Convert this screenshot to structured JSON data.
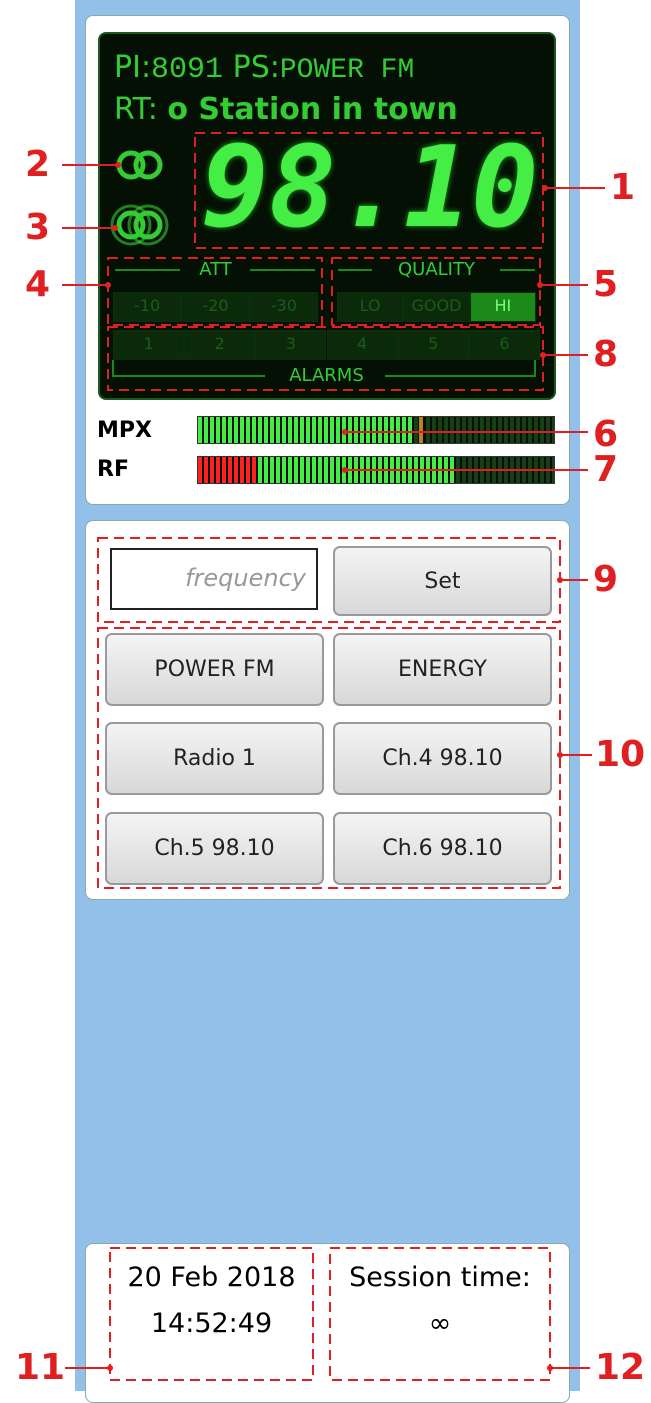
{
  "display": {
    "pi_label": "PI:",
    "pi": "8091",
    "ps_label": "PS:",
    "ps": "POWER FM",
    "rt_label": "RT:",
    "rt": "o Station in town",
    "frequency": "98.10",
    "att": {
      "title": "ATT",
      "cells": [
        "-10",
        "-20",
        "-30"
      ]
    },
    "quality": {
      "title": "QUALITY",
      "cells": [
        "LO",
        "GOOD",
        "HI"
      ],
      "active": 2
    },
    "alarms": {
      "title": "ALARMS",
      "cells": [
        "1",
        "2",
        "3",
        "4",
        "5",
        "6"
      ]
    }
  },
  "meters": [
    {
      "name": "MPX",
      "segments": 60,
      "level": 36,
      "peak": 38,
      "red": 0
    },
    {
      "name": "RF",
      "segments": 60,
      "level": 43,
      "red": 10
    }
  ],
  "controls": {
    "placeholder": "frequency",
    "set": "Set",
    "presets": [
      "POWER FM",
      "ENERGY",
      "Radio 1",
      "Ch.4 98.10",
      "Ch.5 98.10",
      "Ch.6 98.10"
    ]
  },
  "footer": {
    "date": "20 Feb 2018",
    "time": "14:52:49",
    "session_label": "Session time:",
    "session": "∞"
  },
  "callouts": [
    "1",
    "2",
    "3",
    "4",
    "5",
    "6",
    "7",
    "8",
    "9",
    "10",
    "11",
    "12"
  ]
}
